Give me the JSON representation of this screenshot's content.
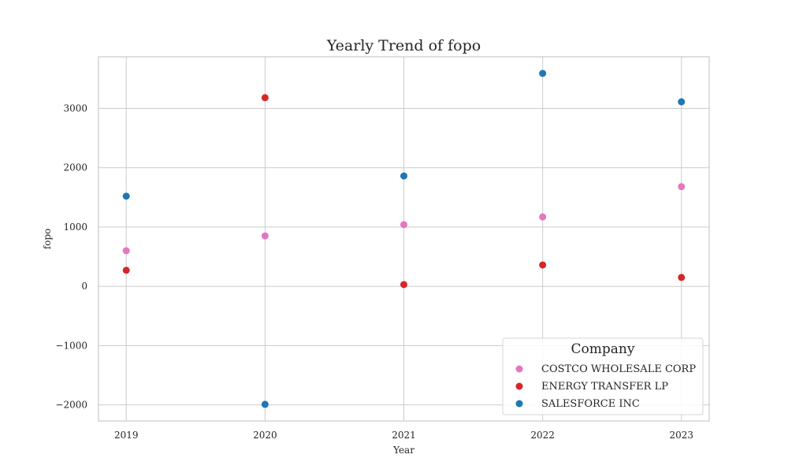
{
  "chart_data": {
    "type": "scatter",
    "title": "Yearly Trend of fopo",
    "xlabel": "Year",
    "ylabel": "fopo",
    "x": [
      2019,
      2020,
      2021,
      2022,
      2023
    ],
    "x_tick_labels": [
      "2019",
      "2020",
      "2021",
      "2022",
      "2023"
    ],
    "xlim": [
      2018.8,
      2023.2
    ],
    "y_ticks": [
      -2000,
      -1000,
      0,
      1000,
      2000,
      3000
    ],
    "y_tick_labels": [
      "−2000",
      "−1000",
      "0",
      "1000",
      "2000",
      "3000"
    ],
    "ylim": [
      -2270,
      3870
    ],
    "grid": true,
    "legend": {
      "title": "Company",
      "placement": "lower-right"
    },
    "series": [
      {
        "name": "COSTCO WHOLESALE CORP",
        "color": "#e377c2",
        "values": [
          600,
          850,
          1040,
          1170,
          1680
        ]
      },
      {
        "name": "ENERGY TRANSFER LP",
        "color": "#d62728",
        "values": [
          270,
          3180,
          30,
          360,
          150
        ]
      },
      {
        "name": "SALESFORCE INC",
        "color": "#1f77b4",
        "values": [
          1520,
          -1990,
          1860,
          3590,
          3110
        ]
      }
    ]
  }
}
